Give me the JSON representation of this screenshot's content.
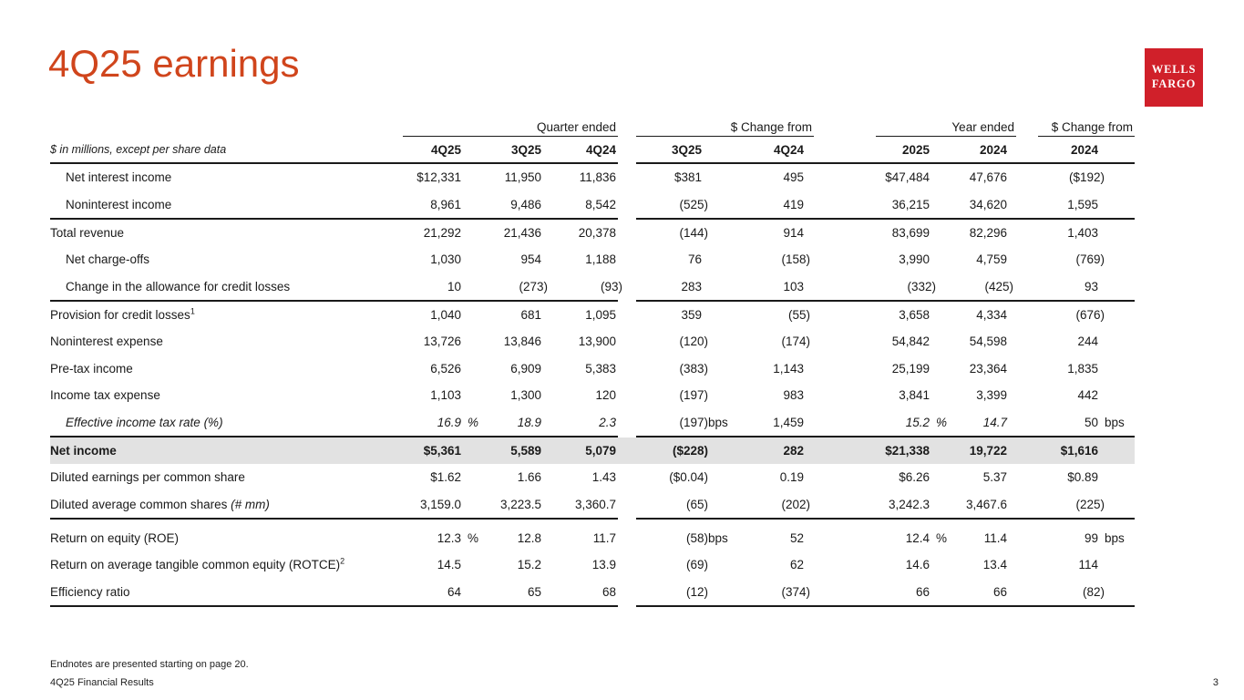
{
  "slide": {
    "title": "4Q25 earnings",
    "title_color": "#D0451C",
    "logo": {
      "line1": "WELLS",
      "line2": "FARGO",
      "bg": "#D0202A"
    },
    "footnote": "Endnotes are presented starting on page 20.",
    "footer": "4Q25 Financial Results",
    "page_number": "3"
  },
  "table": {
    "note": "$ in millions, except per share data",
    "group_headers": [
      {
        "label": "Quarter ended"
      },
      {
        "label": "$ Change from"
      },
      {
        "label": "Year ended"
      },
      {
        "label": "$ Change from"
      }
    ],
    "columns": [
      "4Q25",
      "3Q25",
      "4Q24",
      "3Q25",
      "4Q24",
      "2025",
      "2024",
      "2024"
    ],
    "rows": [
      {
        "label": "Net interest income",
        "indent": 1,
        "cells": [
          "$12,331",
          "11,950",
          "11,836",
          "$381",
          "495",
          "$47,484",
          "47,676",
          "($192)"
        ]
      },
      {
        "label": "Noninterest income",
        "indent": 1,
        "sep_after": true,
        "cells": [
          "8,961",
          "9,486",
          "8,542",
          "(525)",
          "419",
          "36,215",
          "34,620",
          "1,595"
        ]
      },
      {
        "label": "Total revenue",
        "indent": 0,
        "cells": [
          "21,292",
          "21,436",
          "20,378",
          "(144)",
          "914",
          "83,699",
          "82,296",
          "1,403"
        ]
      },
      {
        "label": "Net charge-offs",
        "indent": 1,
        "cells": [
          "1,030",
          "954",
          "1,188",
          "76",
          "(158)",
          "3,990",
          "4,759",
          "(769)"
        ]
      },
      {
        "label": "Change in the allowance for credit losses",
        "indent": 1,
        "sep_after": true,
        "cells": [
          "10",
          "(273)",
          "(93)",
          "283",
          "103",
          "(332)",
          "(425)",
          "93"
        ]
      },
      {
        "label": "Provision for credit losses",
        "sup": "1",
        "indent": 0,
        "cells": [
          "1,040",
          "681",
          "1,095",
          "359",
          "(55)",
          "3,658",
          "4,334",
          "(676)"
        ]
      },
      {
        "label": "Noninterest expense",
        "indent": 0,
        "cells": [
          "13,726",
          "13,846",
          "13,900",
          "(120)",
          "(174)",
          "54,842",
          "54,598",
          "244"
        ]
      },
      {
        "label": "Pre-tax income",
        "indent": 0,
        "cells": [
          "6,526",
          "6,909",
          "5,383",
          "(383)",
          "1,143",
          "25,199",
          "23,364",
          "1,835"
        ]
      },
      {
        "label": "Income tax expense",
        "indent": 0,
        "cells": [
          "1,103",
          "1,300",
          "120",
          "(197)",
          "983",
          "3,841",
          "3,399",
          "442"
        ]
      },
      {
        "label": "Effective income tax rate (%)",
        "indent": 1,
        "label_italic": true,
        "sep_after": true,
        "cells": [
          "16.9",
          "18.9",
          "2.3",
          "(197)",
          "1,459",
          "15.2",
          "14.7",
          "50"
        ],
        "suffixes": {
          "0": "%",
          "3": "bps",
          "5": "%",
          "7": "bps"
        },
        "italics": [
          0,
          1,
          2,
          5,
          6
        ]
      },
      {
        "label": "Net income",
        "indent": 0,
        "bold": true,
        "shaded": true,
        "cells": [
          "$5,361",
          "5,589",
          "5,079",
          "($228)",
          "282",
          "$21,338",
          "19,722",
          "$1,616"
        ]
      },
      {
        "label": "Diluted earnings per common share",
        "indent": 0,
        "cells": [
          "$1.62",
          "1.66",
          "1.43",
          "($0.04)",
          "0.19",
          "$6.26",
          "5.37",
          "$0.89"
        ]
      },
      {
        "label": "Diluted average common shares ",
        "label_em": "(# mm)",
        "indent": 0,
        "sep_after": true,
        "cells": [
          "3,159.0",
          "3,223.5",
          "3,360.7",
          "(65)",
          "(202)",
          "3,242.3",
          "3,467.6",
          "(225)"
        ]
      },
      {
        "label": "Return on equity (ROE)",
        "indent": 0,
        "gap_before": true,
        "cells": [
          "12.3",
          "12.8",
          "11.7",
          "(58)",
          "52",
          "12.4",
          "11.4",
          "99"
        ],
        "suffixes": {
          "0": "%",
          "3": "bps",
          "5": "%",
          "7": "bps"
        }
      },
      {
        "label": "Return on average tangible common equity (ROTCE)",
        "sup": "2",
        "indent": 0,
        "cells": [
          "14.5",
          "15.2",
          "13.9",
          "(69)",
          "62",
          "14.6",
          "13.4",
          "114"
        ]
      },
      {
        "label": "Efficiency ratio",
        "indent": 0,
        "sep_after": true,
        "cells": [
          "64",
          "65",
          "68",
          "(12)",
          "(374)",
          "66",
          "66",
          "(82)"
        ]
      }
    ]
  }
}
